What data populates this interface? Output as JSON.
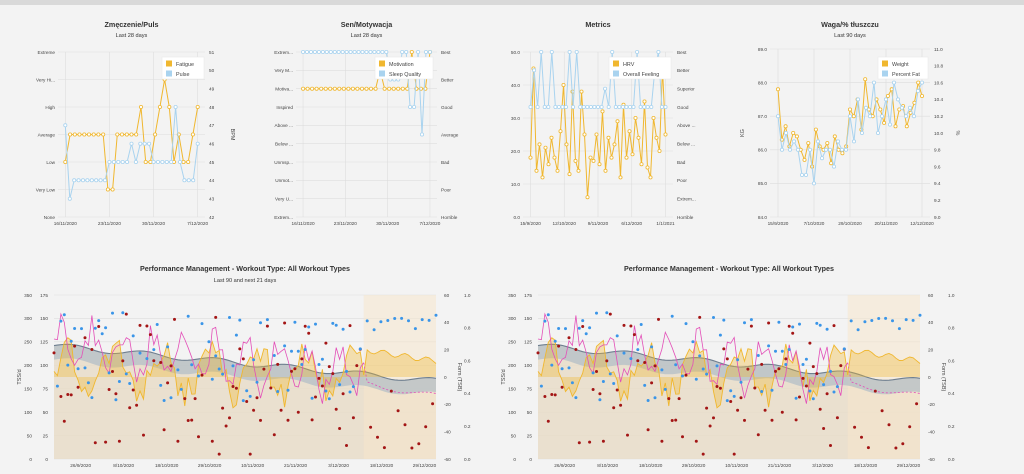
{
  "colors": {
    "orange": "#f0b72f",
    "blue": "#a9d3ef",
    "darkred": "#a31515",
    "pink": "#e34fb8",
    "dotblue": "#3a95e8",
    "fitness": "#9eb2c4",
    "tan": "#e7dcc8",
    "grid": "#dddddd"
  },
  "chart_data": [
    {
      "type": "line",
      "title": "Zmęczenie/Puls",
      "subtitle": "Last 28 days",
      "xticks": [
        "16/11/2020",
        "23/11/2020",
        "30/11/2020",
        "7/12/2020"
      ],
      "yleft_ticks": [
        "None",
        "Very Low",
        "Low",
        "Average",
        "High",
        "Very Hi...",
        "Extreme"
      ],
      "yright_ticks": [
        "42",
        "43",
        "44",
        "45",
        "46",
        "47",
        "48",
        "49",
        "50",
        "51"
      ],
      "ylabel_right": "BPM",
      "legend": [
        "Fatigue",
        "Pulse"
      ],
      "series": [
        {
          "name": "Fatigue",
          "axis": "left",
          "values": [
            2,
            3,
            3,
            3,
            3,
            3,
            3,
            3,
            3,
            1,
            1,
            3,
            3,
            3,
            3,
            3,
            4,
            2,
            2,
            3,
            4,
            5,
            4,
            2,
            3,
            2,
            2,
            3,
            4
          ]
        },
        {
          "name": "Pulse",
          "axis": "right",
          "values": [
            47,
            43,
            44,
            44,
            44,
            44,
            44,
            44,
            44,
            44,
            45,
            45,
            45,
            45,
            45,
            46,
            45,
            46,
            46,
            46,
            45,
            45,
            45,
            45,
            45,
            48,
            45,
            44,
            44,
            44,
            46
          ]
        }
      ]
    },
    {
      "type": "line",
      "title": "Sen/Motywacja",
      "subtitle": "Last 28 days",
      "xticks": [
        "16/11/2020",
        "23/11/2020",
        "30/11/2020",
        "7/12/2020"
      ],
      "yleft_ticks": [
        "Extrem...",
        "Very U...",
        "Unmot...",
        "Unmsp...",
        "Below ...",
        "Above ...",
        "Inspired",
        "Motiva...",
        "Very M...",
        "Extrem..."
      ],
      "yright_ticks": [
        "Horrible",
        "Poor",
        "Bad",
        "Average",
        "Good",
        "Better",
        "Best"
      ],
      "legend": [
        "Motivation",
        "Sleep Quality"
      ],
      "series": [
        {
          "name": "Motivation",
          "axis": "left",
          "values": [
            7,
            7,
            7,
            7,
            7,
            7,
            7,
            7,
            7,
            7,
            7,
            7,
            7,
            7,
            7,
            7,
            7,
            8,
            7,
            7,
            7,
            7,
            7,
            7,
            9,
            7,
            7,
            7,
            9
          ]
        },
        {
          "name": "Sleep Quality",
          "axis": "right",
          "values": [
            6,
            6,
            6,
            6,
            6,
            6,
            6,
            6,
            6,
            6,
            6,
            6,
            6,
            6,
            6,
            6,
            6,
            6,
            6,
            6,
            6,
            6,
            5,
            5,
            5,
            6,
            6,
            4,
            4,
            6,
            3,
            6,
            6
          ]
        }
      ]
    },
    {
      "type": "line",
      "title": "Metrics",
      "xticks": [
        "15/9/2020",
        "12/10/2020",
        "9/11/2020",
        "6/12/2020",
        "1/1/2021"
      ],
      "yleft_ticks": [
        "0.0",
        "10.0",
        "20.0",
        "30.0",
        "40.0",
        "50.0"
      ],
      "yright_ticks": [
        "Horrible",
        "Extrem...",
        "Poor",
        "Bad",
        "Below ...",
        "Above ...",
        "Good",
        "Superior",
        "Better",
        "Best"
      ],
      "legend": [
        "HRV",
        "Overall Feeling"
      ],
      "series": [
        {
          "name": "HRV",
          "axis": "left",
          "values": [
            18,
            45,
            14,
            22,
            12,
            21,
            16,
            24,
            18,
            14,
            26,
            40,
            22,
            13,
            38,
            17,
            14,
            38,
            25,
            6,
            18,
            17,
            25,
            16,
            32,
            14,
            24,
            18,
            22,
            29,
            12,
            34,
            18,
            26,
            19,
            30,
            24,
            16,
            35,
            15,
            12,
            30,
            24,
            20,
            45,
            25
          ]
        },
        {
          "name": "Overall Feeling",
          "axis": "right",
          "values": [
            6,
            8,
            6,
            9,
            6,
            6,
            9,
            6,
            6,
            6,
            6,
            9,
            6,
            9,
            6,
            6,
            6,
            6,
            6,
            6,
            6,
            7,
            6,
            9,
            6,
            6,
            6,
            6,
            6,
            6,
            9,
            6,
            6,
            6,
            6,
            8,
            9,
            6,
            6
          ]
        }
      ]
    },
    {
      "type": "line",
      "title": "Waga/% tłuszczu",
      "subtitle": "Last 90 days",
      "xticks": [
        "15/9/2020",
        "7/10/2020",
        "29/10/2020",
        "20/11/2020",
        "12/12/2020"
      ],
      "yleft_ticks": [
        "84.0",
        "85.0",
        "86.0",
        "87.0",
        "88.0",
        "89.0"
      ],
      "yright_ticks": [
        "9.0",
        "9.2",
        "9.4",
        "9.6",
        "9.8",
        "10.0",
        "10.2",
        "10.4",
        "10.6",
        "10.8",
        "11.0"
      ],
      "ylabel_left": "KG",
      "ylabel_right": "%",
      "legend": [
        "Weight",
        "Percent Fat"
      ],
      "series": [
        {
          "name": "Weight",
          "axis": "left",
          "values": [
            87.8,
            86.3,
            86.7,
            86.1,
            86.5,
            86.4,
            86.0,
            85.7,
            86.2,
            85.5,
            86.6,
            86.1,
            86.0,
            86.2,
            85.6,
            86.4,
            86.0,
            85.9,
            86.1,
            87.2,
            87.0,
            87.5,
            86.6,
            88.1,
            87.2,
            87.0,
            87.5,
            87.2,
            86.8,
            87.6,
            87.8,
            86.7,
            87.2,
            87.3,
            86.7,
            87.1,
            87.4,
            88.0,
            87.6
          ]
        },
        {
          "name": "Percent Fat",
          "axis": "right",
          "values": [
            10.2,
            9.8,
            10.0,
            9.8,
            9.9,
            9.8,
            9.5,
            9.5,
            9.8,
            9.4,
            9.9,
            9.7,
            9.8,
            9.8,
            9.6,
            9.9,
            9.8,
            9.8,
            10.2,
            9.9,
            10.4,
            10.0,
            10.3,
            10.2,
            10.6,
            10.0,
            10.2,
            10.4,
            10.1,
            10.6,
            10.4,
            10.3,
            10.2,
            10.3,
            10.2,
            10.5,
            10.6
          ]
        }
      ]
    },
    {
      "type": "area",
      "title": "Performance Management - Workout Type: All Workout Types",
      "subtitle": "Last 90 and next 21 days",
      "xticks": [
        "26/9/2020",
        "8/10/2020",
        "18/10/2020",
        "29/10/2020",
        "10/11/2020",
        "21/11/2020",
        "3/12/2020",
        "18/12/2020",
        "29/12/2020"
      ],
      "yleft_ticks": [
        "0",
        "50",
        "100",
        "150",
        "200",
        "250",
        "300",
        "350"
      ],
      "yleft2_ticks": [
        "0",
        "25",
        "50",
        "75",
        "100",
        "125",
        "150",
        "175"
      ],
      "yright_ticks": [
        "-60",
        "-40",
        "-20",
        "0",
        "20",
        "40",
        "60"
      ],
      "yright2_ticks": [
        "0.0",
        "0.2",
        "0.4",
        "0.6",
        "0.8",
        "1.0"
      ],
      "ylabel_left": "TSS/d",
      "ylabel_right": "Form (TSB)"
    },
    {
      "type": "area",
      "title": "Performance Management - Workout Type: All Workout Types",
      "xticks": [
        "26/9/2020",
        "8/10/2020",
        "18/10/2020",
        "29/10/2020",
        "10/11/2020",
        "21/11/2020",
        "3/12/2020",
        "18/12/2020",
        "29/12/2020"
      ],
      "yleft_ticks": [
        "0",
        "50",
        "100",
        "150",
        "200",
        "250",
        "300",
        "350"
      ],
      "yleft2_ticks": [
        "0",
        "25",
        "50",
        "75",
        "100",
        "125",
        "150",
        "175"
      ],
      "yright_ticks": [
        "-60",
        "-40",
        "-20",
        "0",
        "20",
        "40",
        "60"
      ],
      "yright2_ticks": [
        "0.0",
        "0.2",
        "0.4",
        "0.6",
        "0.8",
        "1.0"
      ],
      "ylabel_left": "TSS/d",
      "ylabel_right": "Form (TSB)"
    }
  ]
}
